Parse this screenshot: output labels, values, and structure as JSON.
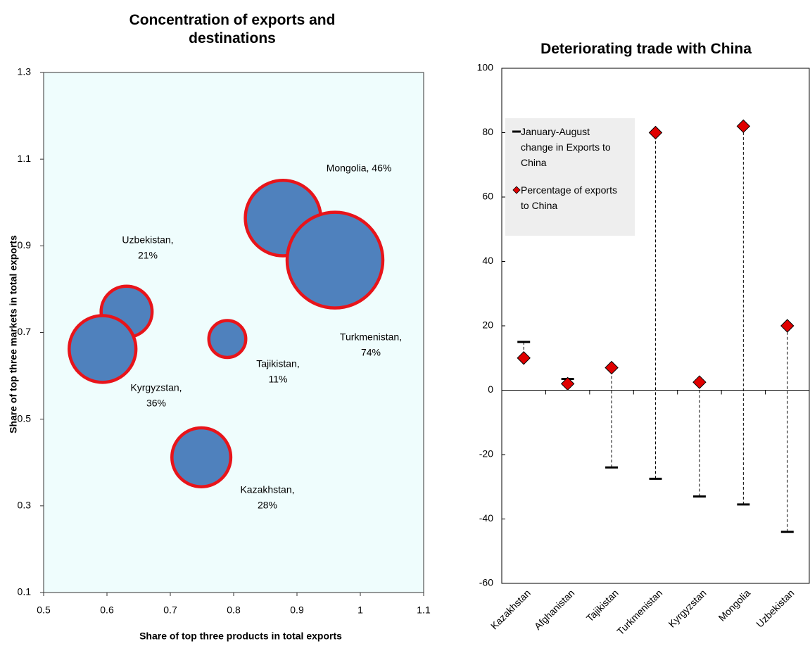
{
  "chart_data": [
    {
      "type": "bubble",
      "title": "Concentration of exports and destinations",
      "xlabel": "Share of top three products in total exports",
      "ylabel": "Share of top three markets in total exports",
      "x": [
        0.878,
        0.96,
        0.631,
        0.593,
        0.79,
        0.749
      ],
      "y": [
        0.964,
        0.867,
        0.748,
        0.662,
        0.685,
        0.412
      ],
      "sizes": [
        46,
        74,
        21,
        36,
        11,
        28
      ],
      "labels": [
        [
          "Mongolia, 46%"
        ],
        [
          "Turkmenistan,",
          "74%"
        ],
        [
          "Uzbekistan,",
          "21%"
        ],
        [
          "Kyrgyzstan,",
          "36%"
        ],
        [
          "Tajikistan,",
          "11%"
        ],
        [
          "Kazakhstan,",
          "28%"
        ]
      ],
      "color": "#4f81bd",
      "edge_color": "#e8141a",
      "xlim": [
        0.5,
        1.1
      ],
      "xticks": [
        0.5,
        0.6,
        0.7,
        0.8,
        0.9,
        1,
        1.1
      ],
      "ylim": [
        0.1,
        1.3
      ],
      "yticks": [
        0.1,
        0.3,
        0.5,
        0.7,
        0.9,
        1.1,
        1.3
      ]
    },
    {
      "type": "dot",
      "title": "Deteriorating trade with China",
      "categories": [
        "Kazakhstan",
        "Afghanistan",
        "Tajikistan",
        "Turkmenistan",
        "Kyrgyzstan",
        "Mongolia",
        "Uzbekistan"
      ],
      "series": [
        {
          "name": "January-August change in Exports to China",
          "color": "#000000",
          "marker": "dash",
          "values": [
            15,
            3.5,
            -24,
            -27.5,
            -33,
            -35.5,
            -44
          ]
        },
        {
          "name": "Percentage of exports to China",
          "color": "#e00000",
          "marker": "diamond",
          "values": [
            10,
            2,
            7,
            80,
            2.5,
            82,
            20
          ]
        }
      ],
      "ylim": [
        -60,
        100
      ],
      "yticks": [
        -60,
        -40,
        -20,
        0,
        20,
        40,
        60,
        80,
        100
      ]
    }
  ]
}
